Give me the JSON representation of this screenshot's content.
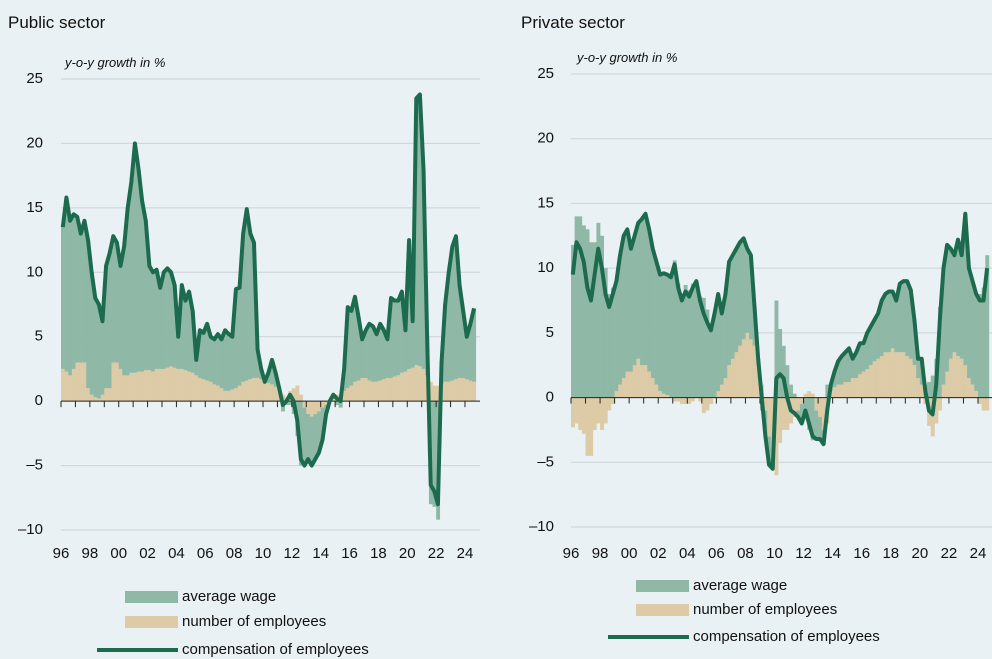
{
  "chart_data": [
    {
      "type": "combo",
      "title": "Public sector",
      "y_label": "y-o-y growth in %",
      "legend": "bottom",
      "grid": true,
      "ylim": [
        -10,
        25
      ],
      "yticks": [
        {
          "value": -10,
          "label": "–10"
        },
        {
          "value": -5,
          "label": "–5"
        },
        0,
        5,
        10,
        15,
        20,
        25
      ],
      "categories": [
        "96",
        null,
        null,
        null,
        null,
        null,
        null,
        null,
        "98",
        null,
        null,
        null,
        null,
        null,
        null,
        null,
        "00",
        null,
        null,
        null,
        null,
        null,
        null,
        null,
        "02",
        null,
        null,
        null,
        null,
        null,
        null,
        null,
        "04",
        null,
        null,
        null,
        null,
        null,
        null,
        null,
        "06",
        null,
        null,
        null,
        null,
        null,
        null,
        null,
        "08",
        null,
        null,
        null,
        null,
        null,
        null,
        null,
        "10",
        null,
        null,
        null,
        null,
        null,
        null,
        null,
        "12",
        null,
        null,
        null,
        null,
        null,
        null,
        null,
        "14",
        null,
        null,
        null,
        null,
        null,
        null,
        null,
        "16",
        null,
        null,
        null,
        null,
        null,
        null,
        null,
        "18",
        null,
        null,
        null,
        null,
        null,
        null,
        null,
        "20",
        null,
        null,
        null,
        null,
        null,
        null,
        null,
        "22",
        null,
        null,
        null,
        null,
        null,
        null,
        null,
        "24",
        null,
        null
      ],
      "series": [
        {
          "name": "average wage",
          "kind": "bar",
          "color": "#8fb8a6",
          "values": [
            11,
            13.5,
            12,
            12,
            11.3,
            10,
            11,
            11.5,
            9.5,
            7.7,
            7.3,
            5.7,
            9.5,
            10.5,
            9.8,
            9.3,
            8,
            10,
            13,
            14.8,
            17.8,
            15.7,
            13.2,
            11.6,
            8.1,
            7.7,
            7.7,
            6.3,
            7.5,
            7.7,
            7.3,
            6.4,
            2.5,
            6.5,
            5.4,
            6.2,
            4.8,
            1.2,
            3.7,
            3.6,
            4.4,
            3.5,
            3.5,
            4,
            3.8,
            4.7,
            4.4,
            4.1,
            7.7,
            7.6,
            11.5,
            13.3,
            11.3,
            10.5,
            2.2,
            0.8,
            0,
            0.8,
            1.9,
            1.1,
            0.2,
            -0.8,
            -0.3,
            -0.3,
            -1,
            -2.7,
            -5,
            -4.5,
            -3.5,
            -3.8,
            -3.5,
            -3.2,
            -2.5,
            -0.7,
            0,
            0.2,
            -0.3,
            -0.5,
            1.7,
            6.3,
            5.8,
            6.6,
            4.9,
            3,
            3.7,
            4.4,
            4.3,
            3.7,
            4.4,
            3.8,
            3,
            6.2,
            5.9,
            5.8,
            6.3,
            3.2,
            10,
            3.6,
            20.7,
            21.1,
            15.5,
            3,
            -8,
            -8.2,
            -9.2,
            1.7,
            6,
            8.5,
            10.4,
            11.1,
            7.2,
            5.2,
            3.3,
            4.4,
            5.7
          ]
        },
        {
          "name": "number of employees",
          "kind": "bar",
          "color": "#dccba6",
          "values": [
            2.5,
            2.3,
            2,
            2.5,
            3,
            3,
            3,
            1,
            0.5,
            0.3,
            0.2,
            0.5,
            1,
            1,
            3,
            3,
            2.5,
            2,
            2,
            2.2,
            2.2,
            2.3,
            2.3,
            2.4,
            2.4,
            2.3,
            2.5,
            2.5,
            2.5,
            2.6,
            2.7,
            2.6,
            2.5,
            2.5,
            2.4,
            2.3,
            2.2,
            2,
            1.8,
            1.7,
            1.6,
            1.5,
            1.3,
            1.2,
            1,
            0.8,
            0.8,
            0.9,
            1,
            1.2,
            1.5,
            1.6,
            1.7,
            1.8,
            1.8,
            1.7,
            1.5,
            1.4,
            1.3,
            1.1,
            0.8,
            0.5,
            0.3,
            0.8,
            1,
            1.2,
            0.5,
            -0.5,
            -1,
            -1.2,
            -1,
            -0.8,
            -0.5,
            -0.3,
            0,
            0.3,
            0.5,
            0.5,
            0.8,
            1,
            1.2,
            1.5,
            1.6,
            1.8,
            1.8,
            1.6,
            1.5,
            1.5,
            1.6,
            1.7,
            1.8,
            1.8,
            1.9,
            2,
            2.2,
            2.3,
            2.5,
            2.6,
            2.8,
            2.7,
            2.5,
            2,
            1.5,
            1.2,
            1.2,
            1.3,
            1.5,
            1.5,
            1.6,
            1.7,
            1.8,
            1.8,
            1.7,
            1.6,
            1.5
          ]
        },
        {
          "name": "compensation of employees",
          "kind": "line",
          "color": "#1d6b4e",
          "values": [
            13.5,
            15.8,
            14,
            14.5,
            14.3,
            13,
            14,
            12.5,
            10,
            8,
            7.5,
            6.2,
            10.5,
            11.5,
            12.8,
            12.3,
            10.5,
            12,
            15,
            17,
            20,
            18,
            15.5,
            14,
            10.5,
            10,
            10.2,
            8.8,
            10,
            10.3,
            10,
            9,
            5,
            9,
            7.8,
            8.5,
            7,
            3.2,
            5.5,
            5.3,
            6,
            5,
            4.8,
            5.2,
            4.8,
            5.5,
            5.2,
            5,
            8.7,
            8.8,
            13,
            14.9,
            13,
            12.3,
            4,
            2.5,
            1.5,
            2.2,
            3.2,
            2.2,
            1,
            -0.3,
            0,
            0.5,
            0,
            -1.5,
            -4.5,
            -5,
            -4.5,
            -5,
            -4.5,
            -4,
            -3,
            -1,
            0,
            0.5,
            0.2,
            0,
            2.5,
            7.3,
            7,
            8.1,
            6.5,
            4.8,
            5.5,
            6,
            5.8,
            5.2,
            6,
            5.5,
            4.8,
            8,
            7.8,
            7.8,
            8.5,
            5.5,
            12.5,
            6.2,
            23.5,
            23.8,
            18,
            5,
            -6.5,
            -7,
            -8,
            3,
            7.5,
            10,
            12,
            12.8,
            9,
            7,
            5,
            6,
            7.2
          ]
        }
      ]
    },
    {
      "type": "combo",
      "title": "Private sector",
      "y_label": "y-o-y growth in %",
      "legend": "bottom",
      "grid": true,
      "ylim": [
        -10,
        25
      ],
      "yticks": [
        {
          "value": -10,
          "label": "–10"
        },
        {
          "value": -5,
          "label": "–5"
        },
        0,
        5,
        10,
        15,
        20,
        25
      ],
      "categories": [
        "96",
        null,
        null,
        null,
        null,
        null,
        null,
        null,
        "98",
        null,
        null,
        null,
        null,
        null,
        null,
        null,
        "00",
        null,
        null,
        null,
        null,
        null,
        null,
        null,
        "02",
        null,
        null,
        null,
        null,
        null,
        null,
        null,
        "04",
        null,
        null,
        null,
        null,
        null,
        null,
        null,
        "06",
        null,
        null,
        null,
        null,
        null,
        null,
        null,
        "08",
        null,
        null,
        null,
        null,
        null,
        null,
        null,
        "10",
        null,
        null,
        null,
        null,
        null,
        null,
        null,
        "12",
        null,
        null,
        null,
        null,
        null,
        null,
        null,
        "14",
        null,
        null,
        null,
        null,
        null,
        null,
        null,
        "16",
        null,
        null,
        null,
        null,
        null,
        null,
        null,
        "18",
        null,
        null,
        null,
        null,
        null,
        null,
        null,
        "20",
        null,
        null,
        null,
        null,
        null,
        null,
        null,
        "22",
        null,
        null,
        null,
        null,
        null,
        null,
        null,
        "24",
        null,
        null
      ],
      "series": [
        {
          "name": "average wage",
          "kind": "bar",
          "color": "#8fb8a6",
          "values": [
            11.8,
            14,
            14,
            13.3,
            13,
            12,
            12,
            13.5,
            12.5,
            10,
            8,
            8.5,
            8.5,
            10,
            11,
            11,
            9.5,
            10,
            10.5,
            11.3,
            11.7,
            11,
            10,
            9.5,
            9,
            9.3,
            9.3,
            9.3,
            10.6,
            8.8,
            8,
            8.7,
            8.3,
            8.8,
            9,
            7.8,
            7.7,
            6.8,
            5.7,
            6.5,
            7.5,
            5.5,
            6.5,
            8,
            8,
            8,
            8,
            7.8,
            6.5,
            6.5,
            3,
            0.5,
            -1,
            -2,
            -2.2,
            -0.5,
            7.5,
            5.3,
            4,
            2.5,
            1,
            0.3,
            -0.5,
            -1.5,
            -1.3,
            -2.5,
            -3.3,
            -2.2,
            -1.7,
            -1.1,
            1,
            0.5,
            1.2,
            1.8,
            2.2,
            2.3,
            2.6,
            1.5,
            2,
            2.4,
            2.2,
            2.8,
            3,
            3.2,
            3.5,
            4.3,
            4.5,
            4.7,
            4.4,
            4,
            5.3,
            5.5,
            5.8,
            5.3,
            3.5,
            1.5,
            2,
            1,
            1.2,
            1.7,
            3,
            7,
            9,
            9.8,
            8.5,
            7.5,
            9,
            8,
            11.7,
            8.5,
            8,
            7.5,
            8,
            8.5,
            11
          ]
        },
        {
          "name": "number of employees",
          "kind": "bar",
          "color": "#dccba6",
          "values": [
            -2.3,
            -2,
            -2.5,
            -2.8,
            -4.5,
            -4.5,
            -2.5,
            -2,
            -2.5,
            -2,
            -1,
            -0.5,
            0.5,
            1,
            1.5,
            2,
            2,
            2.5,
            3,
            2.5,
            2.5,
            2,
            1.5,
            1,
            0.5,
            0.3,
            0.2,
            0,
            -0.3,
            -0.3,
            -0.5,
            -0.5,
            -0.5,
            -0.3,
            0,
            -0.3,
            -1.2,
            -1,
            -0.5,
            0,
            0.5,
            1,
            1.5,
            2.5,
            3,
            3.5,
            4,
            4.5,
            5,
            4.5,
            4,
            2.5,
            1,
            -1,
            -3,
            -5,
            -6,
            -3.5,
            -2.5,
            -2.5,
            -2,
            -1.5,
            -1,
            -0.5,
            0.3,
            0.5,
            0.3,
            -1,
            -1.5,
            -2.5,
            -2,
            0.5,
            0.8,
            1,
            1,
            1.2,
            1.2,
            1.5,
            1.5,
            1.8,
            2,
            2.2,
            2.5,
            2.8,
            3,
            3.2,
            3.5,
            3.5,
            3.8,
            3.5,
            3.5,
            3.5,
            3.2,
            3,
            2.5,
            1.5,
            1,
            -0.5,
            -2.2,
            -3,
            -2,
            -1,
            1,
            2,
            3,
            3.5,
            3.2,
            3,
            2.5,
            1.5,
            1,
            0.5,
            -0.5,
            -1,
            -1
          ]
        },
        {
          "name": "compensation of employees",
          "kind": "line",
          "color": "#1d6b4e",
          "values": [
            9.5,
            12,
            11.5,
            10.5,
            8.5,
            7.5,
            9.5,
            11.5,
            10,
            8,
            7,
            8,
            9,
            11,
            12.5,
            13,
            11.5,
            12.5,
            13.5,
            13.8,
            14.2,
            13,
            11.5,
            10.5,
            9.5,
            9.6,
            9.5,
            9.3,
            10.3,
            8.5,
            7.5,
            8.2,
            7.8,
            8.5,
            9,
            7.5,
            6.5,
            5.8,
            5.2,
            6.5,
            8,
            6.5,
            8,
            10.5,
            11,
            11.5,
            12,
            12.3,
            11.5,
            11,
            7,
            3,
            0,
            -3,
            -5.2,
            -5.5,
            1.5,
            1.8,
            1.5,
            0,
            -1,
            -1.2,
            -1.5,
            -2,
            -1,
            -2,
            -3,
            -3.2,
            -3.2,
            -3.6,
            -1,
            1,
            2,
            2.8,
            3.2,
            3.5,
            3.8,
            3,
            3.5,
            4.2,
            4.2,
            5,
            5.5,
            6,
            6.5,
            7.5,
            8,
            8.2,
            8.2,
            7.5,
            8.8,
            9,
            9,
            8.3,
            6,
            3,
            3,
            0.5,
            -1,
            -1.3,
            1,
            6,
            10,
            11.8,
            11.5,
            11,
            12.2,
            11,
            14.2,
            10,
            9,
            8,
            7.5,
            7.5,
            10
          ]
        }
      ]
    }
  ]
}
